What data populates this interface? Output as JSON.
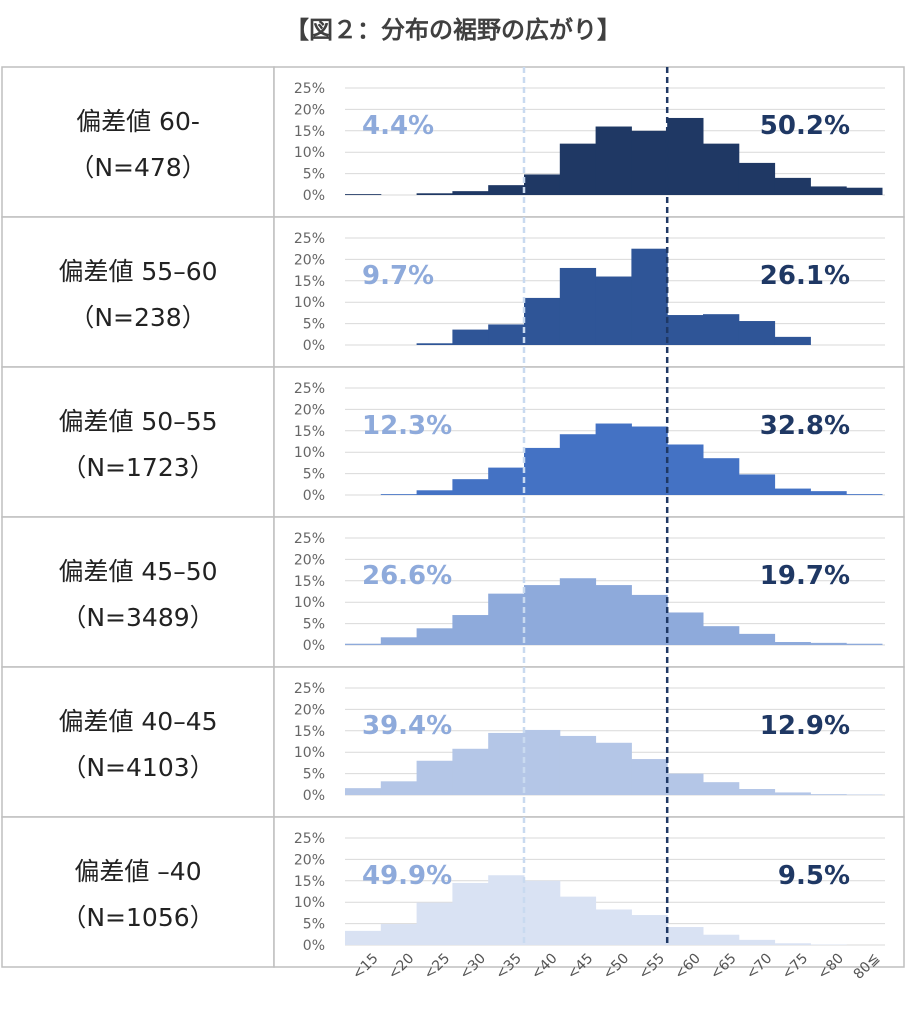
{
  "title": "【図２：分布の裾野の広がり】",
  "chart_data": {
    "type": "bar",
    "categories": [
      "<15",
      "<20",
      "<25",
      "<30",
      "<35",
      "<40",
      "<45",
      "<50",
      "<55",
      "<60",
      "<65",
      "<70",
      "<75",
      "<80",
      "80≦"
    ],
    "y_ticks": [
      "25%",
      "20%",
      "15%",
      "10%",
      "5%",
      "0%"
    ],
    "ylim": [
      0,
      25
    ],
    "reference_lines": [
      {
        "category_boundary": "<40",
        "style": "dashed",
        "color": "#c9daf0"
      },
      {
        "category_boundary": "<60",
        "style": "dashed",
        "color": "#1f3864"
      }
    ],
    "panels": [
      {
        "label": "偏差値 60-",
        "n": "（N=478）",
        "color": "#1f3864",
        "left_pct": "4.4%",
        "right_pct": "50.2%",
        "values": [
          0.2,
          0,
          0.4,
          0.9,
          2.3,
          4.8,
          12.0,
          16.0,
          15.0,
          18.0,
          12.0,
          7.5,
          4.0,
          2.0,
          1.7
        ]
      },
      {
        "label": "偏差値 55–60",
        "n": "（N=238）",
        "color": "#2f5597",
        "left_pct": "9.7%",
        "right_pct": "26.1%",
        "values": [
          0,
          0,
          0.4,
          3.6,
          4.8,
          11.0,
          18.0,
          16.0,
          22.5,
          7.0,
          7.2,
          5.6,
          1.9,
          0,
          0
        ]
      },
      {
        "label": "偏差値 50–55",
        "n": "（N=1723）",
        "color": "#4472c4",
        "left_pct": "12.3%",
        "right_pct": "32.8%",
        "values": [
          0,
          0.2,
          1.1,
          3.7,
          6.4,
          11.0,
          14.2,
          16.7,
          16.0,
          11.8,
          8.6,
          4.8,
          1.5,
          0.9,
          0.2
        ]
      },
      {
        "label": "偏差値 45–50",
        "n": "（N=3489）",
        "color": "#8eaadb",
        "left_pct": "26.6%",
        "right_pct": "19.7%",
        "values": [
          0.3,
          1.8,
          3.9,
          7.0,
          12.0,
          14.0,
          15.6,
          14.0,
          11.7,
          7.6,
          4.4,
          2.6,
          0.7,
          0.5,
          0.3
        ]
      },
      {
        "label": "偏差値 40–45",
        "n": "（N=4103）",
        "color": "#b4c6e7",
        "left_pct": "39.4%",
        "right_pct": "12.9%",
        "values": [
          1.6,
          3.2,
          8.0,
          10.8,
          14.5,
          15.2,
          13.8,
          12.2,
          8.4,
          5.0,
          3.0,
          1.4,
          0.6,
          0.2,
          0.1
        ]
      },
      {
        "label": "偏差値 –40",
        "n": "（N=1056）",
        "color": "#d9e2f3",
        "left_pct": "49.9%",
        "right_pct": "9.5%",
        "values": [
          3.3,
          4.9,
          9.9,
          14.5,
          16.3,
          15.0,
          11.3,
          8.3,
          7.0,
          4.2,
          2.4,
          1.2,
          0.4,
          0.1,
          0
        ]
      }
    ]
  },
  "colors": {
    "left_pct_text": "#8eaadb",
    "right_pct_text": "#1f3864",
    "grid": "#d9d9d9",
    "border": "#bfbfbf"
  }
}
